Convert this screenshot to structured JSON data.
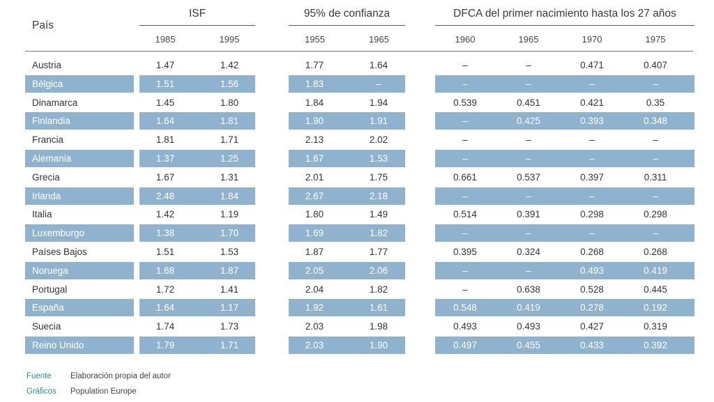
{
  "header": {
    "country_label": "País",
    "groups": [
      {
        "label": "ISF",
        "years": [
          "1985",
          "1995"
        ]
      },
      {
        "label": "95% de confianza",
        "years": [
          "1955",
          "1965"
        ]
      },
      {
        "label": "DFCA del primer nacimiento hasta los 27 años",
        "years": [
          "1960",
          "1965",
          "1970",
          "1975"
        ]
      }
    ]
  },
  "rows": [
    {
      "country": "Austria",
      "values": [
        "1.47",
        "1.42",
        "1.77",
        "1.64",
        "–",
        "–",
        "0.471",
        "0.407"
      ]
    },
    {
      "country": "Bélgica",
      "values": [
        "1.51",
        "1.56",
        "1.83",
        "–",
        "–",
        "–",
        "–",
        "–"
      ]
    },
    {
      "country": "Dinamarca",
      "values": [
        "1.45",
        "1.80",
        "1.84",
        "1.94",
        "0.539",
        "0.451",
        "0.421",
        "0.35"
      ]
    },
    {
      "country": "Finlandia",
      "values": [
        "1.64",
        "1.81",
        "1.90",
        "1.91",
        "–",
        "0.425",
        "0.393",
        "0.348"
      ]
    },
    {
      "country": "Francia",
      "values": [
        "1.81",
        "1.71",
        "2.13",
        "2.02",
        "–",
        "–",
        "–",
        "–"
      ]
    },
    {
      "country": "Alemania",
      "values": [
        "1.37",
        "1.25",
        "1.67",
        "1.53",
        "–",
        "–",
        "–",
        "–"
      ]
    },
    {
      "country": "Grecia",
      "values": [
        "1.67",
        "1.31",
        "2.01",
        "1.75",
        "0.661",
        "0.537",
        "0.397",
        "0.311"
      ]
    },
    {
      "country": "Irlanda",
      "values": [
        "2.48",
        "1.84",
        "2.67",
        "2.18",
        "–",
        "–",
        "–",
        "–"
      ]
    },
    {
      "country": "Italia",
      "values": [
        "1.42",
        "1.19",
        "1.80",
        "1.49",
        "0.514",
        "0.391",
        "0.298",
        "0.298"
      ]
    },
    {
      "country": "Luxemburgo",
      "values": [
        "1.38",
        "1.70",
        "1.69",
        "1.82",
        "–",
        "–",
        "–",
        "–"
      ]
    },
    {
      "country": "Países Bajos",
      "values": [
        "1.51",
        "1.53",
        "1.87",
        "1.77",
        "0.395",
        "0.324",
        "0.268",
        "0.268"
      ]
    },
    {
      "country": "Noruega",
      "values": [
        "1.68",
        "1.87",
        "2.05",
        "2.06",
        "–",
        "–",
        "0.493",
        "0.419"
      ]
    },
    {
      "country": "Portugal",
      "values": [
        "1.72",
        "1.41",
        "2.04",
        "1.82",
        "–",
        "0.638",
        "0.528",
        "0.445"
      ]
    },
    {
      "country": "España",
      "values": [
        "1.64",
        "1.17",
        "1.92",
        "1.61",
        "0.548",
        "0.419",
        "0.278",
        "0.192"
      ]
    },
    {
      "country": "Suecia",
      "values": [
        "1.74",
        "1.73",
        "2.03",
        "1.98",
        "0.493",
        "0.493",
        "0.427",
        "0.319"
      ]
    },
    {
      "country": "Reino Unido",
      "values": [
        "1.79",
        "1.71",
        "2.03",
        "1.90",
        "0.497",
        "0.455",
        "0.433",
        "0.392"
      ]
    }
  ],
  "footer": {
    "source_label": "Fuente",
    "source_value": "Elaboración propia del autor",
    "graphics_label": "Gráficos",
    "graphics_value": "Population Europe"
  },
  "colors": {
    "band": "#8fb3cf",
    "footer_label": "#2a8a95"
  }
}
